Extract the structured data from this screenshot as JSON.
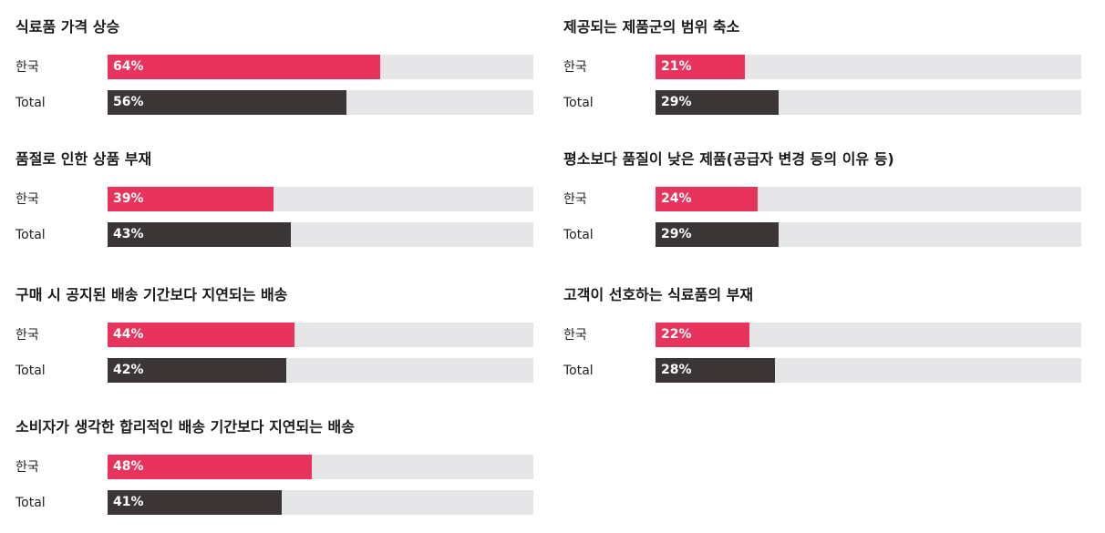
{
  "colors": {
    "korea": "#e8335c",
    "total": "#3b3536",
    "track": "#e6e6e8"
  },
  "chart_data": [
    {
      "type": "bar",
      "orientation": "horizontal",
      "title": "식료품 가격 상승",
      "categories": [
        "한국",
        "Total"
      ],
      "values": [
        64,
        56
      ],
      "value_labels": [
        "64%",
        "56%"
      ],
      "xlim": [
        0,
        100
      ]
    },
    {
      "type": "bar",
      "orientation": "horizontal",
      "title": "제공되는 제품군의 범위 축소",
      "categories": [
        "한국",
        "Total"
      ],
      "values": [
        21,
        29
      ],
      "value_labels": [
        "21%",
        "29%"
      ],
      "xlim": [
        0,
        100
      ]
    },
    {
      "type": "bar",
      "orientation": "horizontal",
      "title": "품절로 인한 상품 부재",
      "categories": [
        "한국",
        "Total"
      ],
      "values": [
        39,
        43
      ],
      "value_labels": [
        "39%",
        "43%"
      ],
      "xlim": [
        0,
        100
      ]
    },
    {
      "type": "bar",
      "orientation": "horizontal",
      "title": "평소보다 품질이 낮은 제품(공급자 변경 등의 이유 등)",
      "categories": [
        "한국",
        "Total"
      ],
      "values": [
        24,
        29
      ],
      "value_labels": [
        "24%",
        "29%"
      ],
      "xlim": [
        0,
        100
      ]
    },
    {
      "type": "bar",
      "orientation": "horizontal",
      "title": "구매 시 공지된 배송 기간보다 지연되는 배송",
      "categories": [
        "한국",
        "Total"
      ],
      "values": [
        44,
        42
      ],
      "value_labels": [
        "44%",
        "42%"
      ],
      "xlim": [
        0,
        100
      ]
    },
    {
      "type": "bar",
      "orientation": "horizontal",
      "title": "고객이 선호하는 식료품의 부재",
      "categories": [
        "한국",
        "Total"
      ],
      "values": [
        22,
        28
      ],
      "value_labels": [
        "22%",
        "28%"
      ],
      "xlim": [
        0,
        100
      ]
    },
    {
      "type": "bar",
      "orientation": "horizontal",
      "title": "소비자가 생각한 합리적인 배송 기간보다 지연되는 배송",
      "categories": [
        "한국",
        "Total"
      ],
      "values": [
        48,
        41
      ],
      "value_labels": [
        "48%",
        "41%"
      ],
      "xlim": [
        0,
        100
      ]
    }
  ]
}
